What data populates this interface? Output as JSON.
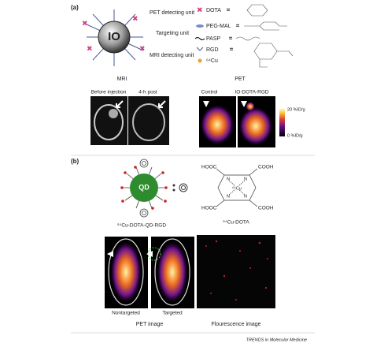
{
  "panel_a": {
    "label": "(a)",
    "particle": {
      "core": "IO",
      "pet_unit": "PET detecting unit",
      "targeting_unit": "Targeting unit",
      "mri_unit": "MRI detecting unit"
    },
    "legend": [
      "DOTA",
      "PEG-MAL",
      "PASP",
      "RGD",
      "⁶⁴Cu"
    ],
    "mri": {
      "title": "MRI",
      "images": [
        "Before injection",
        "4-h post"
      ]
    },
    "pet": {
      "title": "PET",
      "images": [
        "Control",
        "IO-DOTA-RGD"
      ],
      "colorbar_max": "20 %ID/g",
      "colorbar_min": "0 %ID/g"
    }
  },
  "panel_b": {
    "label": "(b)",
    "core": "QD",
    "probe_name": "⁶⁴Cu-DOTA-QD-RGD",
    "chelate": {
      "name": "⁶⁴Cu-DOTA",
      "groups": [
        "HOOC",
        "COOH",
        "HOOC",
        "COOH"
      ],
      "nitrogens": [
        "N",
        "N",
        "N",
        "N"
      ],
      "metal": "⁶⁴Cu"
    },
    "pet_image": {
      "title": "PET image",
      "images": [
        "Nontargeted",
        "Targeted"
      ]
    },
    "fluorescence_title": "Flourescence image"
  },
  "footer": "TRENDS in Molecular Medicine"
}
